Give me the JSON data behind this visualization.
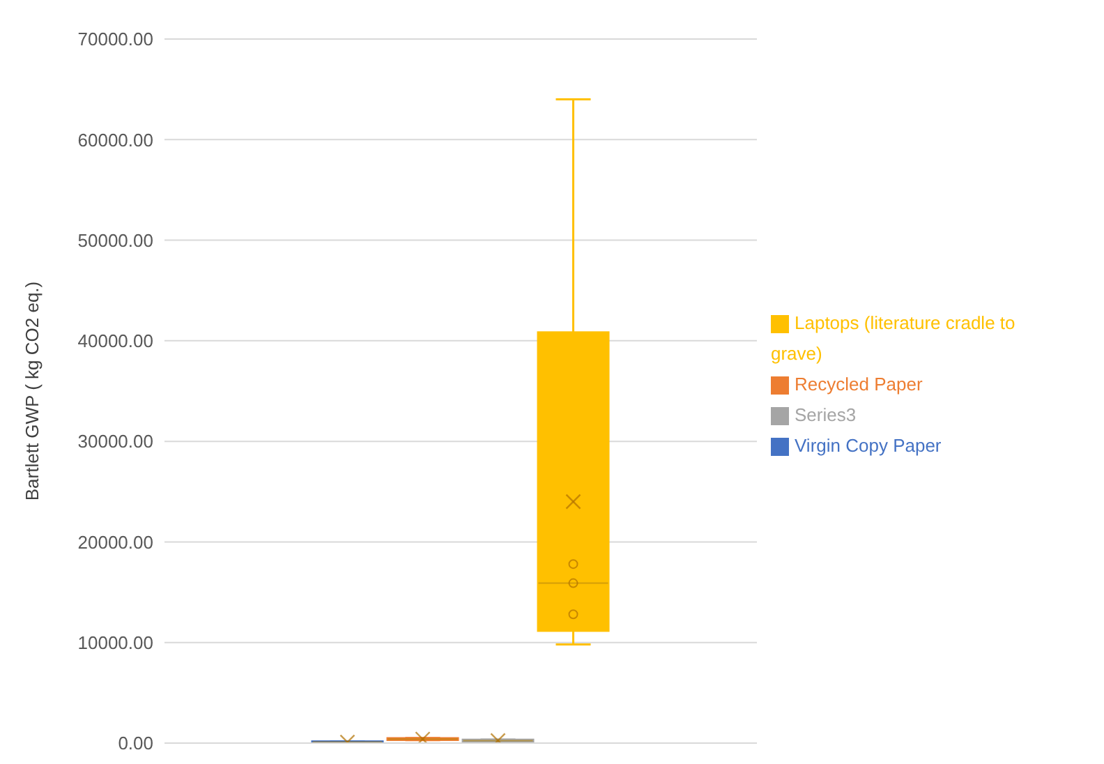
{
  "chart_data": {
    "type": "box",
    "ylabel": "Bartlett GWP ( kg CO2 eq.)",
    "categories": [
      null
    ],
    "series": [
      {
        "name": "Virgin Copy Paper",
        "color": "#4472c4",
        "boxes": [
          {
            "low": 50,
            "q1": 80,
            "median": 100,
            "q3": 130,
            "high": 150,
            "mean": 100
          }
        ]
      },
      {
        "name": "Recycled Paper",
        "color": "#ed7d31",
        "boxes": [
          {
            "low": 300,
            "q1": 350,
            "median": 400,
            "q3": 450,
            "high": 500,
            "mean": 400
          }
        ]
      },
      {
        "name": "Series3",
        "color": "#a5a5a5",
        "boxes": [
          {
            "low": 150,
            "q1": 200,
            "median": 250,
            "q3": 300,
            "high": 350,
            "mean": 250
          }
        ]
      },
      {
        "name": "Laptops (literature cradle to grave)",
        "color": "#ffc000",
        "boxes": [
          {
            "low": 9800,
            "q1": 11200,
            "median": 15900,
            "q3": 40800,
            "high": 64000,
            "mean": 24000,
            "outliers": [
              12800,
              15900,
              17800
            ]
          }
        ]
      }
    ],
    "ylim": [
      0,
      70000
    ],
    "yticks": [
      {
        "value": 0,
        "label": "0.00"
      },
      {
        "value": 10000,
        "label": "10000.00"
      },
      {
        "value": 20000,
        "label": "20000.00"
      },
      {
        "value": 30000,
        "label": "30000.00"
      },
      {
        "value": 40000,
        "label": "40000.00"
      },
      {
        "value": 50000,
        "label": "50000.00"
      },
      {
        "value": 60000,
        "label": "60000.00"
      },
      {
        "value": 70000,
        "label": "70000.00"
      }
    ],
    "grid": "y",
    "legend": "right"
  }
}
